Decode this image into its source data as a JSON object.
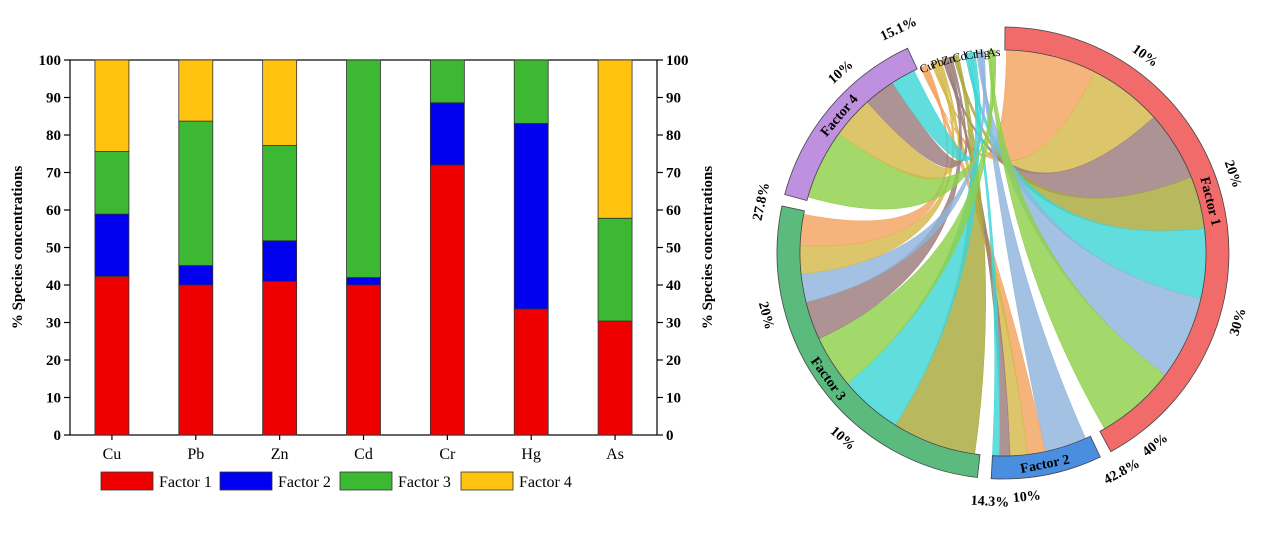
{
  "chart_data": [
    {
      "type": "bar",
      "stacked": true,
      "categories": [
        "Cu",
        "Pb",
        "Zn",
        "Cd",
        "Cr",
        "Hg",
        "As"
      ],
      "series": [
        {
          "name": "Factor 1",
          "color": "#ee0000",
          "values": [
            42.3,
            40.0,
            41.0,
            40.0,
            72.0,
            33.6,
            30.4
          ]
        },
        {
          "name": "Factor 2",
          "color": "#0000ee",
          "values": [
            16.6,
            5.2,
            10.8,
            2.0,
            16.6,
            49.5,
            0
          ]
        },
        {
          "name": "Factor 3",
          "color": "#3cb832",
          "values": [
            16.7,
            38.5,
            25.4,
            58.0,
            11.4,
            16.9,
            27.4
          ]
        },
        {
          "name": "Factor 4",
          "color": "#ffc20e",
          "values": [
            24.4,
            16.3,
            22.8,
            0,
            0,
            0,
            42.2
          ]
        }
      ],
      "ylabel": "% Species concentrations",
      "ylabel_right": "% Species concentrations",
      "ylim": [
        0,
        100
      ],
      "yticks": [
        "0",
        "10",
        "20",
        "30",
        "40",
        "50",
        "60",
        "70",
        "80",
        "90",
        "100"
      ],
      "legend_position": "bottom",
      "grid": false
    },
    {
      "type": "chord",
      "factors": [
        {
          "name": "Factor 1",
          "share": 42.8,
          "color": "#f26b6b",
          "tick_labels": [
            "10%",
            "20%",
            "30%",
            "40%"
          ],
          "end_label": "42.8%"
        },
        {
          "name": "Factor 2",
          "share": 14.3,
          "color": "#4a8ee0",
          "tick_labels": [
            "10%"
          ],
          "end_label": "14.3%"
        },
        {
          "name": "Factor 3",
          "share": 27.8,
          "color": "#5bba7e",
          "tick_labels": [
            "10%",
            "20%"
          ],
          "end_label": "27.8%"
        },
        {
          "name": "Factor 4",
          "share": 15.1,
          "color": "#bf90e0",
          "tick_labels": [
            "10%"
          ],
          "end_label": "15.1%"
        }
      ],
      "metals": [
        {
          "name": "Cu",
          "color": "#f4a460"
        },
        {
          "name": "Pb",
          "color": "#d4b84a"
        },
        {
          "name": "Zn",
          "color": "#9b7b7b"
        },
        {
          "name": "Cd",
          "color": "#a8a83c"
        },
        {
          "name": "Cr",
          "color": "#3fd6d6"
        },
        {
          "name": "Hg",
          "color": "#8fb4dd"
        },
        {
          "name": "As",
          "color": "#8fcf4a"
        }
      ]
    }
  ]
}
